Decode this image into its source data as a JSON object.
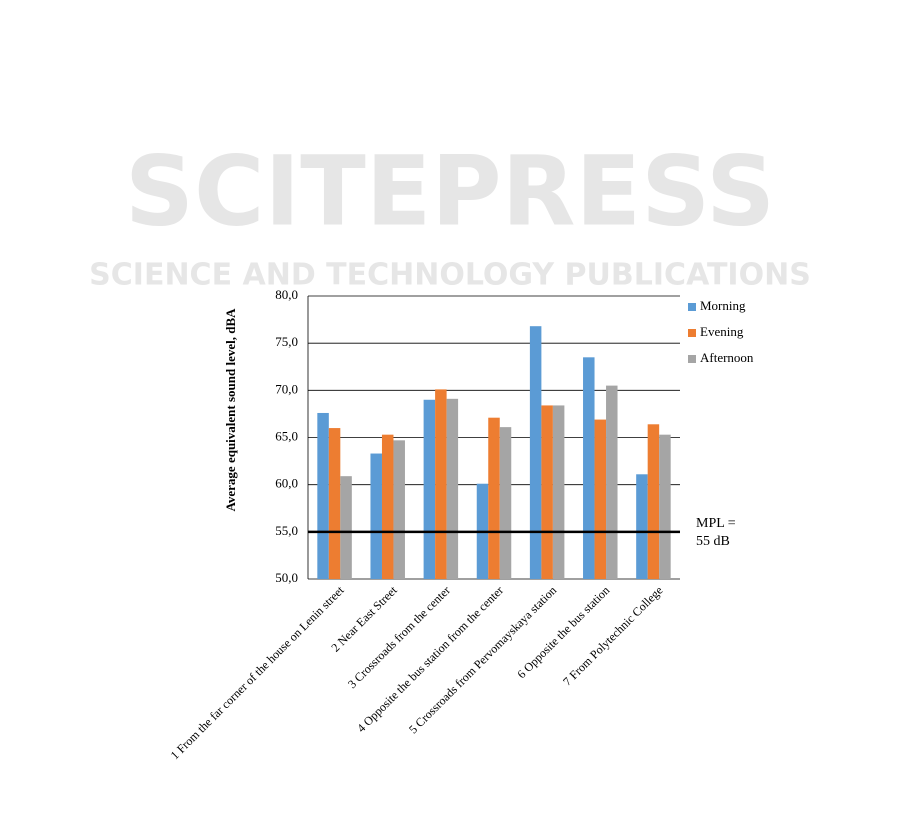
{
  "watermark": {
    "title": "SCITEPRESS",
    "subtitle": "SCIENCE AND TECHNOLOGY PUBLICATIONS"
  },
  "chart_data": {
    "type": "bar",
    "y_label": "Average equivalent sound level, dBA",
    "categories": [
      "1 From the far corner of the house on Lenin street",
      "2 Near East Street",
      "3 Crossroads from the center",
      "4 Opposite the bus station from the center",
      "5 Crossroads from Pervomayskaya station",
      "6 Opposite the bus station",
      "7 From Polytechnic College"
    ],
    "series": [
      {
        "name": "Morning",
        "color": "#5b9bd5",
        "values": [
          67.6,
          63.3,
          69.0,
          60.1,
          76.8,
          73.5,
          61.1
        ]
      },
      {
        "name": "Evening",
        "color": "#ed7d31",
        "values": [
          66.0,
          65.3,
          70.1,
          67.1,
          68.4,
          66.9,
          66.4
        ]
      },
      {
        "name": "Afternoon",
        "color": "#a5a5a5",
        "values": [
          60.9,
          64.7,
          69.1,
          66.1,
          68.4,
          70.5,
          65.3
        ]
      }
    ],
    "ylim": [
      50,
      80
    ],
    "yticks": [
      {
        "value": 50,
        "label": "50,0"
      },
      {
        "value": 55,
        "label": "55,0"
      },
      {
        "value": 60,
        "label": "60,0"
      },
      {
        "value": 65,
        "label": "65,0"
      },
      {
        "value": 70,
        "label": "70,0"
      },
      {
        "value": 75,
        "label": "75,0"
      },
      {
        "value": 80,
        "label": "80,0"
      }
    ],
    "grid": true,
    "legend": "right",
    "reference_line": {
      "value": 55,
      "label": [
        "MPL =",
        "55 dB"
      ]
    }
  }
}
